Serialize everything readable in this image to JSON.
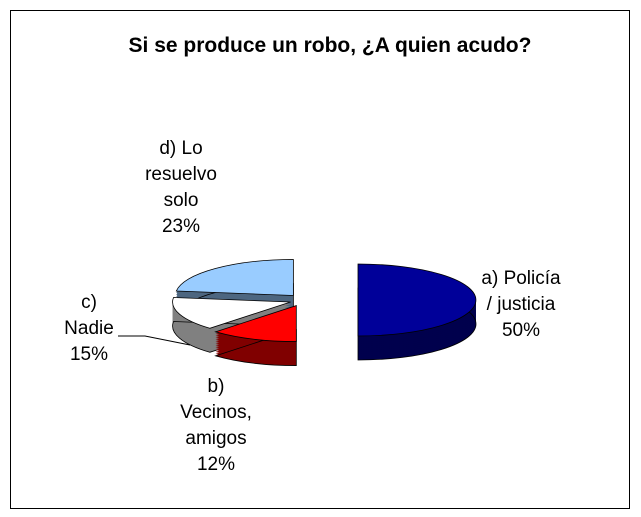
{
  "chart_data": {
    "type": "pie",
    "title": "Si se produce un robo, ¿A quien acudo?",
    "categories": [
      "a) Policía / justicia",
      "b) Vecinos, amigos",
      "c) Nadie",
      "d) Lo resuelvo solo"
    ],
    "values": [
      50,
      12,
      15,
      23
    ],
    "value_labels": [
      "50%",
      "12%",
      "15%",
      "23%"
    ],
    "colors": [
      "#000099",
      "#ff0000",
      "#ffffff",
      "#99ccff"
    ]
  }
}
